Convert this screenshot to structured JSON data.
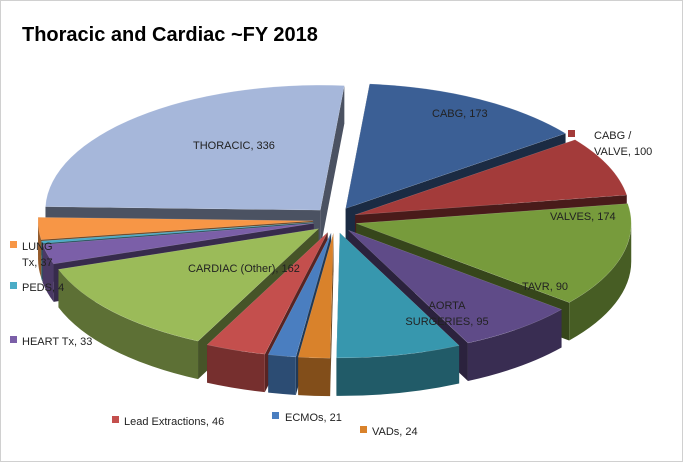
{
  "chart_data": {
    "type": "pie",
    "title": "Thoracic and Cardiac ~FY 2018",
    "values": [
      173,
      100,
      174,
      90,
      95,
      24,
      21,
      46,
      162,
      33,
      4,
      37,
      336
    ],
    "value_labels": [
      "CABG, 173",
      [
        "CABG /",
        "VALVE,  100"
      ],
      "VALVES, 174",
      "TAVR, 90",
      [
        "AORTA",
        "SURGERIES, 95"
      ],
      "VADs, 24",
      "ECMOs, 21",
      "Lead Extractions, 46",
      "CARDIAC (Other), 162",
      "HEART Tx, 33",
      "PEDS, 4",
      [
        "LUNG",
        "Tx, 37"
      ],
      "THORACIC, 336"
    ],
    "colors": [
      "#3b5f95",
      "#a33b3a",
      "#779b3c",
      "#5f4b88",
      "#3797ae",
      "#d9822b",
      "#4a7ec0",
      "#c44f4d",
      "#9bbb59",
      "#7b5fa8",
      "#4bacc6",
      "#f79646",
      "#a6b7da"
    ]
  }
}
